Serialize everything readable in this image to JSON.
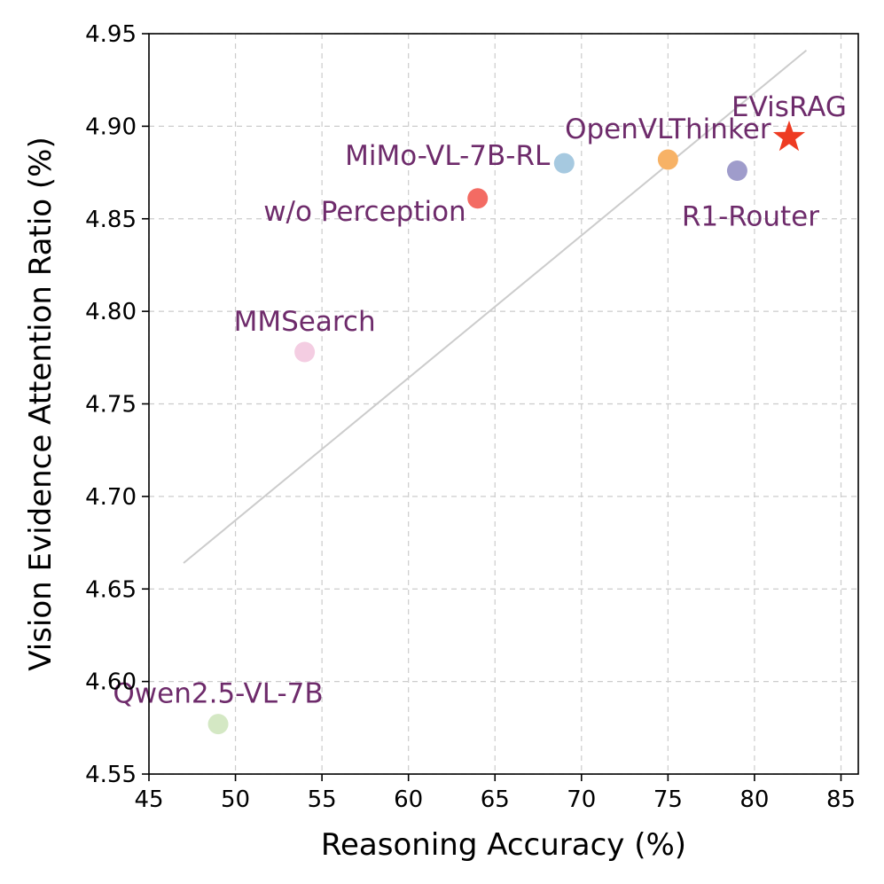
{
  "chart_data": {
    "type": "scatter",
    "title": "",
    "xlabel": "Reasoning Accuracy (%)",
    "ylabel": "Vision Evidence Attention Ratio (%)",
    "xlim": [
      45,
      86
    ],
    "ylim": [
      4.55,
      4.95
    ],
    "xticks": [
      "45",
      "50",
      "55",
      "60",
      "65",
      "70",
      "75",
      "80",
      "85"
    ],
    "yticks": [
      "4.55",
      "4.60",
      "4.65",
      "4.70",
      "4.75",
      "4.80",
      "4.85",
      "4.90",
      "4.95"
    ],
    "grid": true,
    "label_color": "#6e2b6b",
    "trendline": {
      "x": [
        47,
        83
      ],
      "y": [
        4.664,
        4.941
      ],
      "color": "#cccccc"
    },
    "points": [
      {
        "name": "Qwen2.5-VL-7B",
        "x": 49,
        "y": 4.577,
        "color": "#d4e8c4",
        "marker": "circle",
        "label_pos": "above"
      },
      {
        "name": "MMSearch",
        "x": 54,
        "y": 4.778,
        "color": "#f4cde2",
        "marker": "circle",
        "label_pos": "above"
      },
      {
        "name": "w/o Perception",
        "x": 64,
        "y": 4.861,
        "color": "#f36b63",
        "marker": "circle",
        "label_pos": "left-below"
      },
      {
        "name": "MiMo-VL-7B-RL",
        "x": 69,
        "y": 4.88,
        "color": "#a6c9e0",
        "marker": "circle",
        "label_pos": "left"
      },
      {
        "name": "OpenVLThinker",
        "x": 75,
        "y": 4.882,
        "color": "#f7b266",
        "marker": "circle",
        "label_pos": "above"
      },
      {
        "name": "R1-Router",
        "x": 79,
        "y": 4.876,
        "color": "#9f9ccb",
        "marker": "circle",
        "label_pos": "below"
      },
      {
        "name": "EVisRAG",
        "x": 82,
        "y": 4.894,
        "color": "#ee3b22",
        "marker": "star",
        "label_pos": "above"
      }
    ]
  }
}
